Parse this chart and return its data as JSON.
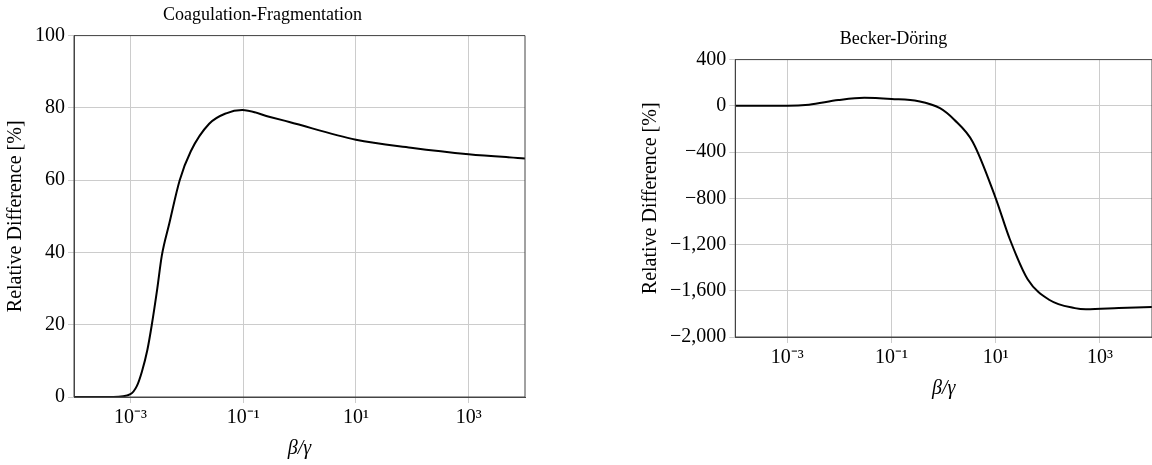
{
  "chart_data": [
    {
      "type": "line",
      "title": "Coagulation-Fragmentation",
      "xlabel": "β/γ",
      "ylabel": "Relative Difference [%]",
      "log": "x",
      "grid": true,
      "legend": false,
      "marker": "none",
      "line_style": "solid",
      "xlim": [
        0.0001,
        10000
      ],
      "xticks": [
        {
          "value": 0.001,
          "label": "10⁻³"
        },
        {
          "value": 0.1,
          "label": "10⁻¹"
        },
        {
          "value": 10,
          "label": "10¹"
        },
        {
          "value": 1000,
          "label": "10³"
        }
      ],
      "ylim": [
        0,
        100
      ],
      "yticks": [
        0,
        20,
        40,
        60,
        80,
        100
      ],
      "series": [
        {
          "color": "#000000",
          "x": [
            0.0001,
            0.0005,
            0.001,
            0.0013,
            0.0016,
            0.002,
            0.0024,
            0.003,
            0.0036,
            0.0049,
            0.0075,
            0.0118,
            0.025,
            0.05,
            0.096,
            0.3,
            0.66,
            10,
            95,
            1000,
            10000
          ],
          "values": [
            0,
            0,
            0.8,
            3,
            7,
            13,
            20,
            30,
            39,
            48,
            60,
            68,
            75.6,
            78.5,
            79.4,
            77.5,
            76.1,
            71.2,
            69,
            67.2,
            66
          ]
        }
      ]
    },
    {
      "type": "line",
      "title": "Becker-Döring",
      "xlabel": "β/γ",
      "ylabel": "Relative Difference [%]",
      "log": "x",
      "grid": true,
      "legend": false,
      "marker": "none",
      "line_style": "solid",
      "xlim": [
        0.0001,
        10000
      ],
      "xticks": [
        {
          "value": 0.001,
          "label": "10⁻³"
        },
        {
          "value": 0.1,
          "label": "10⁻¹"
        },
        {
          "value": 10,
          "label": "10¹"
        },
        {
          "value": 1000,
          "label": "10³"
        }
      ],
      "ylim": [
        -2000,
        400
      ],
      "yticks": [
        {
          "value": -2000,
          "label": "−2,000"
        },
        {
          "value": -1600,
          "label": "−1,600"
        },
        {
          "value": -1200,
          "label": "−1,200"
        },
        {
          "value": -800,
          "label": "−800"
        },
        {
          "value": -400,
          "label": "−400"
        },
        0,
        400
      ],
      "series": [
        {
          "color": "#000000",
          "x": [
            0.0001,
            0.001,
            0.0026,
            0.0095,
            0.03,
            0.1,
            0.33,
            0.85,
            1.6,
            3.6,
            10,
            18.5,
            41,
            108,
            330,
            540,
            2300,
            10000
          ],
          "values": [
            0,
            0,
            10,
            50,
            70,
            60,
            40,
            -20,
            -120,
            -310,
            -800,
            -1150,
            -1500,
            -1680,
            -1750,
            -1760,
            -1750,
            -1740
          ]
        }
      ]
    }
  ]
}
